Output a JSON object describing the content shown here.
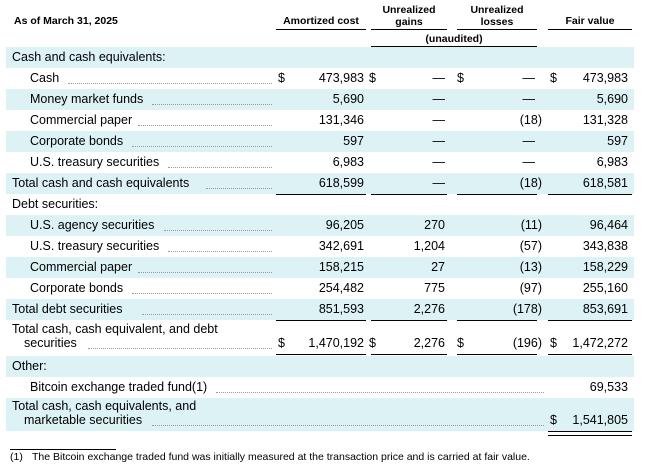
{
  "header": {
    "as_of": "As of March 31, 2025",
    "amortized_cost": "Amortized cost",
    "unrealized_gains": "Unrealized gains",
    "unrealized_losses": "Unrealized losses",
    "fair_value": "Fair value",
    "unaudited": "(unaudited)"
  },
  "currency_symbol": "$",
  "rows": [
    {
      "label": "Cash and cash equivalents:"
    },
    {
      "label": "Cash",
      "cost": "473,983",
      "gains": "—",
      "losses": "—",
      "fair": "473,983"
    },
    {
      "label": "Money market funds",
      "cost": "5,690",
      "gains": "—",
      "losses": "—",
      "fair": "5,690"
    },
    {
      "label": "Commercial paper",
      "cost": "131,346",
      "gains": "—",
      "losses": "(18)",
      "fair": "131,328"
    },
    {
      "label": "Corporate bonds",
      "cost": "597",
      "gains": "—",
      "losses": "—",
      "fair": "597"
    },
    {
      "label": "U.S. treasury securities",
      "cost": "6,983",
      "gains": "—",
      "losses": "—",
      "fair": "6,983"
    },
    {
      "label": "Total cash and cash equivalents",
      "cost": "618,599",
      "gains": "—",
      "losses": "(18)",
      "fair": "618,581"
    },
    {
      "label": "Debt securities:"
    },
    {
      "label": "U.S. agency securities",
      "cost": "96,205",
      "gains": "270",
      "losses": "(11)",
      "fair": "96,464"
    },
    {
      "label": "U.S. treasury securities",
      "cost": "342,691",
      "gains": "1,204",
      "losses": "(57)",
      "fair": "343,838"
    },
    {
      "label": "Commercial paper",
      "cost": "158,215",
      "gains": "27",
      "losses": "(13)",
      "fair": "158,229"
    },
    {
      "label": "Corporate bonds",
      "cost": "254,482",
      "gains": "775",
      "losses": "(97)",
      "fair": "255,160"
    },
    {
      "label": "Total debt securities",
      "cost": "851,593",
      "gains": "2,276",
      "losses": "(178)",
      "fair": "853,691"
    },
    {
      "label": "Total cash, cash equivalent, and debt",
      "label2": "securities",
      "cost": "1,470,192",
      "gains": "2,276",
      "losses": "(196)",
      "fair": "1,472,272"
    },
    {
      "label": "Other:"
    },
    {
      "label": "Bitcoin exchange traded fund(1)",
      "fair": "69,533"
    },
    {
      "label": "Total cash, cash equivalents, and",
      "label2": "marketable securities",
      "fair": "1,541,805"
    }
  ],
  "footnote": {
    "number": "(1)",
    "text": "The Bitcoin exchange traded fund was initially measured at the transaction price and is carried at fair value."
  }
}
